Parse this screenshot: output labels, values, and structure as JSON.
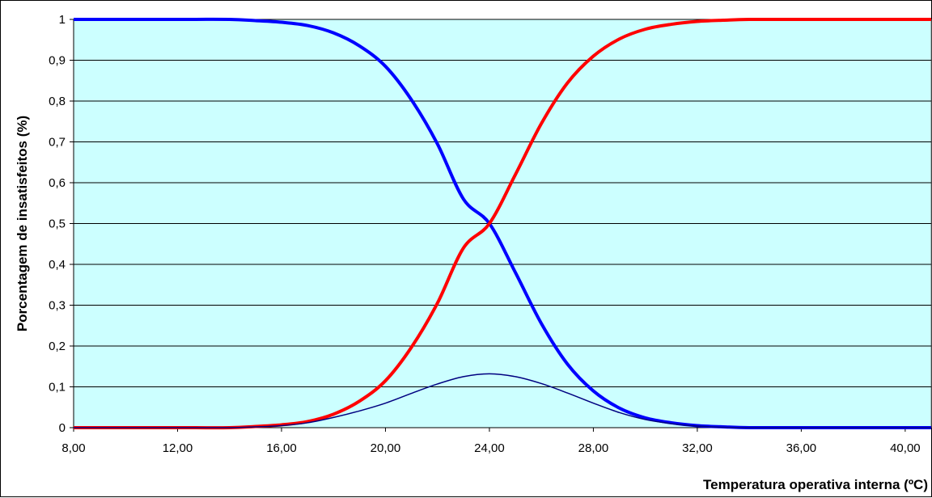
{
  "chart_data": {
    "type": "line",
    "title": "",
    "xlabel": "Temperatura operativa interna (ºC)",
    "ylabel": "Porcentagem de insatisfeitos (%)",
    "xlim": [
      8,
      41
    ],
    "ylim": [
      0,
      1
    ],
    "x_ticks": [
      8,
      12,
      16,
      20,
      24,
      28,
      32,
      36,
      40
    ],
    "x_tick_labels": [
      "8,00",
      "12,00",
      "16,00",
      "20,00",
      "24,00",
      "28,00",
      "32,00",
      "36,00",
      "40,00"
    ],
    "y_ticks": [
      0,
      0.1,
      0.2,
      0.3,
      0.4,
      0.5,
      0.6,
      0.7,
      0.8,
      0.9,
      1
    ],
    "y_tick_labels": [
      "0",
      "0,1",
      "0,2",
      "0,3",
      "0,4",
      "0,5",
      "0,6",
      "0,7",
      "0,8",
      "0,9",
      "1"
    ],
    "grid": "horizontal",
    "plot_background": "#ccffff",
    "x": [
      8,
      10,
      12,
      14,
      15,
      16,
      17,
      18,
      19,
      20,
      21,
      22,
      23,
      24,
      25,
      26,
      27,
      28,
      29,
      30,
      31,
      32,
      33,
      34,
      36,
      38,
      40,
      41
    ],
    "series": [
      {
        "color": "#0000ff",
        "line_width": "thick",
        "values": [
          1,
          1,
          1,
          1,
          0.997,
          0.993,
          0.985,
          0.967,
          0.935,
          0.885,
          0.803,
          0.695,
          0.56,
          0.5,
          0.38,
          0.255,
          0.156,
          0.09,
          0.048,
          0.024,
          0.012,
          0.005,
          0.002,
          0,
          0,
          0,
          0,
          0
        ]
      },
      {
        "color": "#ff0000",
        "line_width": "thick",
        "values": [
          0,
          0,
          0,
          0,
          0.003,
          0.007,
          0.015,
          0.033,
          0.065,
          0.115,
          0.197,
          0.305,
          0.44,
          0.5,
          0.62,
          0.745,
          0.844,
          0.91,
          0.952,
          0.976,
          0.988,
          0.995,
          0.998,
          1,
          1,
          1,
          1,
          1
        ]
      },
      {
        "color": "#000080",
        "line_width": "thin",
        "values": [
          0,
          0,
          0,
          0,
          0.002,
          0.005,
          0.012,
          0.025,
          0.041,
          0.06,
          0.084,
          0.107,
          0.125,
          0.132,
          0.125,
          0.108,
          0.085,
          0.06,
          0.037,
          0.02,
          0.01,
          0.004,
          0.001,
          0,
          0,
          0,
          0,
          0
        ]
      }
    ]
  }
}
